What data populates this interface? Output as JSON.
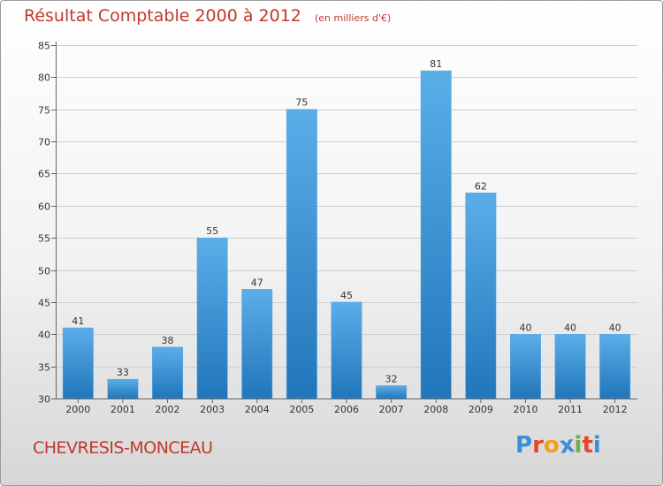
{
  "header": {
    "title": "Résultat Comptable 2000 à 2012",
    "subtitle": "(en milliers d'€)"
  },
  "footer": {
    "commune": "CHEVRESIS-MONCEAU",
    "logo_letters": [
      "P",
      "r",
      "o",
      "x",
      "i",
      "t",
      "i"
    ],
    "logo_colors": [
      "#3b8fd9",
      "#e8442e",
      "#f0a020",
      "#3b8fd9",
      "#6ab04c",
      "#e8442e",
      "#3b8fd9"
    ]
  },
  "colors": {
    "bar_top": "#5aaee8",
    "bar_bottom": "#2176bb",
    "grid": "#cfcfcf",
    "axis": "#666666"
  },
  "chart_data": {
    "type": "bar",
    "title": "Résultat Comptable 2000 à 2012",
    "ylabel": "",
    "xlabel": "",
    "ylim": [
      30,
      85
    ],
    "ytick_step": 5,
    "categories": [
      "2000",
      "2001",
      "2002",
      "2003",
      "2004",
      "2005",
      "2006",
      "2007",
      "2008",
      "2009",
      "2010",
      "2011",
      "2012"
    ],
    "values": [
      41,
      33,
      38,
      55,
      47,
      75,
      45,
      32,
      81,
      62,
      40,
      40,
      40
    ],
    "labels": [
      "41",
      "33",
      "38",
      "55",
      "47",
      "75",
      "45",
      "32",
      "81",
      "62",
      "40",
      "40",
      "40"
    ],
    "grid": true
  }
}
